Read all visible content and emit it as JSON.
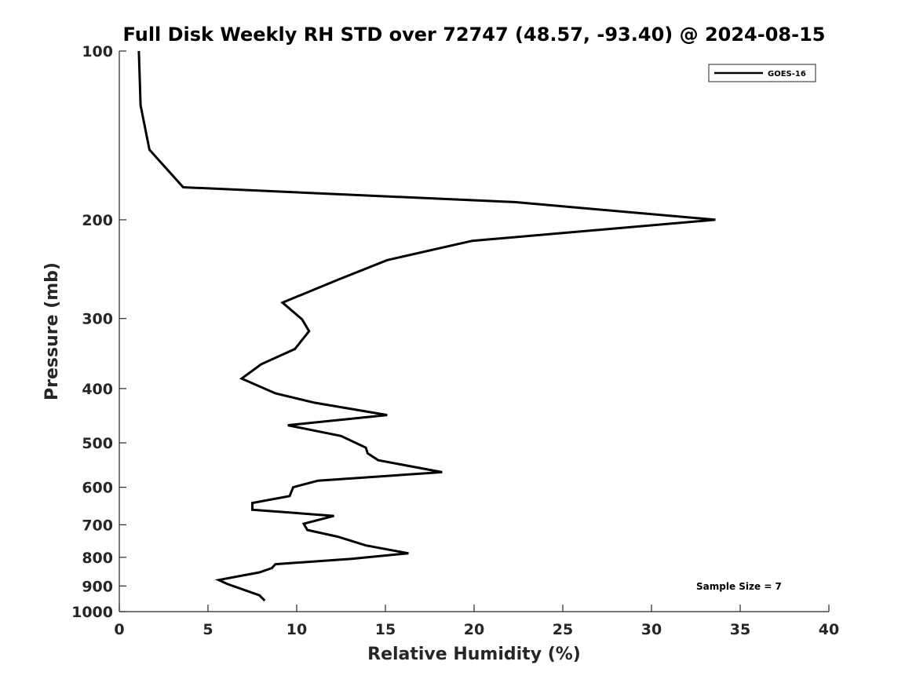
{
  "chart_data": {
    "type": "line",
    "title": "Full Disk Weekly RH STD over 72747 (48.57, -93.40) @ 2024-08-15",
    "xlabel": "Relative Humidity (%)",
    "ylabel": "Pressure (mb)",
    "xlim": [
      0,
      40
    ],
    "ylim": [
      100,
      1000
    ],
    "y_scale": "log",
    "y_reversed": true,
    "x_ticks": [
      0,
      5,
      10,
      15,
      20,
      25,
      30,
      35,
      40
    ],
    "y_ticks": [
      100,
      200,
      300,
      400,
      500,
      600,
      700,
      800,
      900,
      1000
    ],
    "grid": false,
    "legend_location": "top-right",
    "series": [
      {
        "name": "GOES-16",
        "color": "#000000",
        "points": [
          [
            1.1,
            100
          ],
          [
            1.2,
            125
          ],
          [
            1.7,
            150
          ],
          [
            3.6,
            175
          ],
          [
            22.3,
            186
          ],
          [
            33.6,
            200
          ],
          [
            19.9,
            218
          ],
          [
            15.1,
            236
          ],
          [
            12.3,
            256
          ],
          [
            9.2,
            281
          ],
          [
            10.3,
            301
          ],
          [
            10.7,
            316
          ],
          [
            9.9,
            340
          ],
          [
            8.0,
            362
          ],
          [
            6.9,
            384
          ],
          [
            8.8,
            408
          ],
          [
            11.0,
            424
          ],
          [
            15.1,
            446
          ],
          [
            9.5,
            465
          ],
          [
            12.5,
            486
          ],
          [
            13.9,
            510
          ],
          [
            14.0,
            522
          ],
          [
            14.6,
            537
          ],
          [
            18.2,
            564
          ],
          [
            11.2,
            584
          ],
          [
            9.8,
            600
          ],
          [
            9.6,
            622
          ],
          [
            7.5,
            640
          ],
          [
            7.5,
            658
          ],
          [
            12.1,
            675
          ],
          [
            10.4,
            697
          ],
          [
            10.6,
            715
          ],
          [
            12.3,
            735
          ],
          [
            13.9,
            762
          ],
          [
            16.3,
            787
          ],
          [
            13.1,
            805
          ],
          [
            8.8,
            823
          ],
          [
            8.6,
            836
          ],
          [
            7.9,
            851
          ],
          [
            5.6,
            878
          ],
          [
            6.1,
            893
          ],
          [
            7.9,
            935
          ],
          [
            8.2,
            956
          ]
        ]
      }
    ],
    "annotations": [
      "Sample Size = 7"
    ]
  }
}
